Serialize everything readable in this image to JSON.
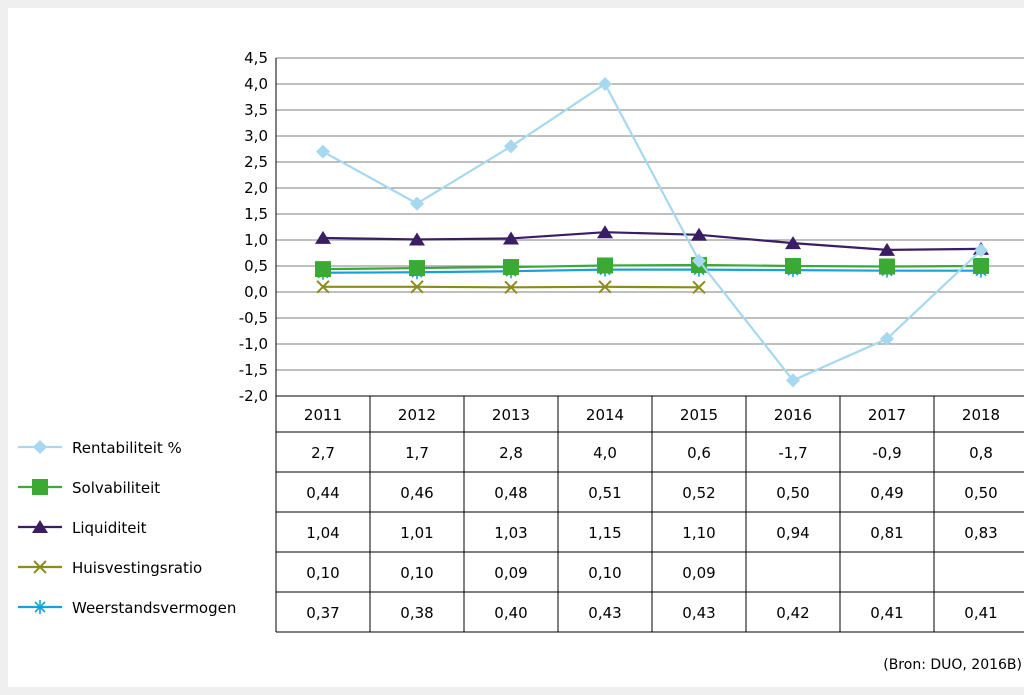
{
  "colors": {
    "background": "#efeff0",
    "plot_background": "#ffffff",
    "grid": "#7f7f7f",
    "rentabiliteit": "#a6d8ef",
    "solvabiliteit": "#3aaa35",
    "liquiditeit": "#3a1d63",
    "huisvestingsratio": "#8c8c1e",
    "weerstandsvermogen": "#19a0dc"
  },
  "source": "(Bron: DUO, 2016B)",
  "chart_data": {
    "type": "line",
    "categories": [
      "2011",
      "2012",
      "2013",
      "2014",
      "2015",
      "2016",
      "2017",
      "2018"
    ],
    "ylim": [
      -2.0,
      4.5
    ],
    "ytick_step": 0.5,
    "ytick_labels": [
      "4,5",
      "4,0",
      "3,5",
      "3,0",
      "2,5",
      "2,0",
      "1,5",
      "1,0",
      "0,5",
      "0,0",
      "-0,5",
      "-1,0",
      "-1,5",
      "-2,0"
    ],
    "grid": "horizontal",
    "legend": "left, as data table rows",
    "series": [
      {
        "name": "Rentabiliteit %",
        "marker": "diamond",
        "values": [
          2.7,
          1.7,
          2.8,
          4.0,
          0.6,
          -1.7,
          -0.9,
          0.8
        ],
        "labels": [
          "2,7",
          "1,7",
          "2,8",
          "4,0",
          "0,6",
          "-1,7",
          "-0,9",
          "0,8"
        ]
      },
      {
        "name": "Solvabiliteit",
        "marker": "square",
        "values": [
          0.44,
          0.46,
          0.48,
          0.51,
          0.52,
          0.5,
          0.49,
          0.5
        ],
        "labels": [
          "0,44",
          "0,46",
          "0,48",
          "0,51",
          "0,52",
          "0,50",
          "0,49",
          "0,50"
        ]
      },
      {
        "name": "Liquiditeit",
        "marker": "triangle",
        "values": [
          1.04,
          1.01,
          1.03,
          1.15,
          1.1,
          0.94,
          0.81,
          0.83
        ],
        "labels": [
          "1,04",
          "1,01",
          "1,03",
          "1,15",
          "1,10",
          "0,94",
          "0,81",
          "0,83"
        ]
      },
      {
        "name": "Huisvestingsratio",
        "marker": "x",
        "values": [
          0.1,
          0.1,
          0.09,
          0.1,
          0.09,
          null,
          null,
          null
        ],
        "labels": [
          "0,10",
          "0,10",
          "0,09",
          "0,10",
          "0,09",
          "",
          "",
          ""
        ]
      },
      {
        "name": "Weerstandsvermogen",
        "marker": "star",
        "values": [
          0.37,
          0.38,
          0.4,
          0.43,
          0.43,
          0.42,
          0.41,
          0.41
        ],
        "labels": [
          "0,37",
          "0,38",
          "0,40",
          "0,43",
          "0,43",
          "0,42",
          "0,41",
          "0,41"
        ]
      }
    ]
  }
}
